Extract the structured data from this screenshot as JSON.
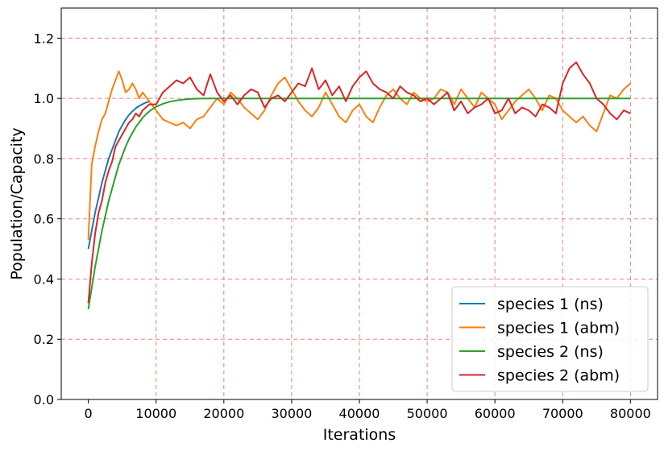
{
  "chart_data": {
    "type": "line",
    "title": "",
    "xlabel": "Iterations",
    "ylabel": "Population/Capacity",
    "xlim": [
      -4000,
      84000
    ],
    "ylim": [
      0.0,
      1.3
    ],
    "x_ticks": [
      0,
      10000,
      20000,
      30000,
      40000,
      50000,
      60000,
      70000,
      80000
    ],
    "y_ticks": [
      0.0,
      0.2,
      0.4,
      0.6,
      0.8,
      1.0,
      1.2
    ],
    "x_tick_labels": [
      "0",
      "10000",
      "20000",
      "30000",
      "40000",
      "50000",
      "60000",
      "70000",
      "80000"
    ],
    "y_tick_labels": [
      "0.0",
      "0.2",
      "0.4",
      "0.6",
      "0.8",
      "1.0",
      "1.2"
    ],
    "grid": true,
    "grid_color": "#f08080",
    "legend_position": "lower-right",
    "series": [
      {
        "name": "species 1 (ns)",
        "color": "#1f77b4",
        "x": [
          0,
          500,
          1000,
          1500,
          2000,
          2500,
          3000,
          3500,
          4000,
          4500,
          5000,
          5500,
          6000,
          6500,
          7000,
          7500,
          8000,
          8500,
          9000
        ],
        "y": [
          0.5,
          0.56,
          0.62,
          0.67,
          0.72,
          0.76,
          0.8,
          0.83,
          0.86,
          0.89,
          0.91,
          0.93,
          0.945,
          0.957,
          0.967,
          0.975,
          0.981,
          0.986,
          0.99
        ]
      },
      {
        "name": "species 1 (abm)",
        "color": "#ff7f0e",
        "x": [
          0,
          500,
          1000,
          1500,
          2000,
          2500,
          3000,
          3500,
          4000,
          4500,
          5000,
          5500,
          6000,
          6500,
          7000,
          7500,
          8000,
          9000,
          10000,
          11000,
          12000,
          13000,
          14000,
          15000,
          16000,
          17000,
          18000,
          19000,
          20000,
          21000,
          22000,
          23000,
          24000,
          25000,
          26000,
          27000,
          28000,
          29000,
          30000,
          31000,
          32000,
          33000,
          34000,
          35000,
          36000,
          37000,
          38000,
          39000,
          40000,
          41000,
          42000,
          43000,
          44000,
          45000,
          46000,
          47000,
          48000,
          49000,
          50000,
          51000,
          52000,
          53000,
          54000,
          55000,
          56000,
          57000,
          58000,
          59000,
          60000,
          61000,
          62000,
          63000,
          64000,
          65000,
          66000,
          67000,
          68000,
          69000,
          70000,
          71000,
          72000,
          73000,
          74000,
          75000,
          76000,
          77000,
          78000,
          79000,
          80000
        ],
        "y": [
          0.53,
          0.78,
          0.84,
          0.89,
          0.93,
          0.95,
          0.99,
          1.03,
          1.06,
          1.09,
          1.06,
          1.02,
          1.03,
          1.05,
          1.03,
          1.0,
          1.02,
          0.99,
          0.96,
          0.93,
          0.92,
          0.91,
          0.92,
          0.9,
          0.93,
          0.94,
          0.97,
          1.0,
          0.98,
          1.02,
          1.0,
          0.97,
          0.95,
          0.93,
          0.96,
          1.01,
          1.05,
          1.07,
          1.03,
          0.99,
          0.96,
          0.94,
          0.97,
          1.02,
          0.98,
          0.94,
          0.92,
          0.96,
          0.98,
          0.94,
          0.92,
          0.97,
          1.01,
          1.03,
          1.0,
          0.98,
          1.02,
          1.0,
          0.99,
          1.0,
          1.03,
          1.02,
          0.98,
          1.03,
          1.0,
          0.97,
          1.02,
          1.0,
          0.98,
          0.93,
          0.96,
          0.99,
          1.01,
          1.03,
          1.0,
          0.96,
          1.01,
          1.0,
          0.96,
          0.94,
          0.92,
          0.94,
          0.91,
          0.89,
          0.95,
          1.01,
          1.0,
          1.03,
          1.05
        ]
      },
      {
        "name": "species 2 (ns)",
        "color": "#2ca02c",
        "x": [
          0,
          500,
          1000,
          1500,
          2000,
          2500,
          3000,
          3500,
          4000,
          4500,
          5000,
          5500,
          6000,
          6500,
          7000,
          7500,
          8000,
          8500,
          9000,
          9500,
          10000,
          11000,
          12000,
          13000,
          14000,
          15000,
          16000,
          18000,
          20000,
          25000,
          30000,
          40000,
          50000,
          60000,
          70000,
          80000
        ],
        "y": [
          0.3,
          0.37,
          0.44,
          0.5,
          0.56,
          0.61,
          0.66,
          0.7,
          0.74,
          0.78,
          0.81,
          0.84,
          0.865,
          0.885,
          0.905,
          0.92,
          0.935,
          0.947,
          0.957,
          0.965,
          0.972,
          0.982,
          0.989,
          0.993,
          0.996,
          0.998,
          0.999,
          1.0,
          1.0,
          1.0,
          1.0,
          1.0,
          1.0,
          1.0,
          1.0,
          1.0
        ]
      },
      {
        "name": "species 2 (abm)",
        "color": "#d62728",
        "x": [
          0,
          500,
          1000,
          1500,
          2000,
          2500,
          3000,
          3500,
          4000,
          4500,
          5000,
          5500,
          6000,
          6500,
          7000,
          7500,
          8000,
          9000,
          10000,
          11000,
          12000,
          13000,
          14000,
          15000,
          16000,
          17000,
          18000,
          19000,
          20000,
          21000,
          22000,
          23000,
          24000,
          25000,
          26000,
          27000,
          28000,
          29000,
          30000,
          31000,
          32000,
          33000,
          34000,
          35000,
          36000,
          37000,
          38000,
          39000,
          40000,
          41000,
          42000,
          43000,
          44000,
          45000,
          46000,
          47000,
          48000,
          49000,
          50000,
          51000,
          52000,
          53000,
          54000,
          55000,
          56000,
          57000,
          58000,
          59000,
          60000,
          61000,
          62000,
          63000,
          64000,
          65000,
          66000,
          67000,
          68000,
          69000,
          70000,
          71000,
          72000,
          73000,
          74000,
          75000,
          76000,
          77000,
          78000,
          79000,
          80000
        ],
        "y": [
          0.32,
          0.45,
          0.55,
          0.62,
          0.66,
          0.72,
          0.76,
          0.79,
          0.84,
          0.86,
          0.88,
          0.9,
          0.92,
          0.93,
          0.95,
          0.94,
          0.96,
          0.98,
          0.98,
          1.02,
          1.04,
          1.06,
          1.05,
          1.07,
          1.03,
          1.01,
          1.08,
          1.02,
          0.99,
          1.01,
          0.98,
          1.01,
          1.03,
          1.02,
          0.97,
          1.0,
          1.01,
          0.99,
          1.02,
          1.05,
          1.04,
          1.1,
          1.03,
          1.06,
          1.01,
          1.04,
          0.99,
          1.04,
          1.07,
          1.09,
          1.05,
          1.03,
          1.02,
          1.0,
          1.04,
          1.02,
          1.01,
          0.99,
          1.0,
          0.98,
          1.0,
          1.02,
          0.96,
          0.99,
          0.95,
          0.97,
          0.98,
          1.0,
          0.95,
          0.96,
          1.0,
          0.95,
          0.97,
          0.96,
          0.94,
          0.98,
          0.97,
          0.95,
          1.05,
          1.1,
          1.12,
          1.08,
          1.05,
          1.0,
          0.98,
          0.95,
          0.93,
          0.96,
          0.95
        ]
      }
    ]
  }
}
